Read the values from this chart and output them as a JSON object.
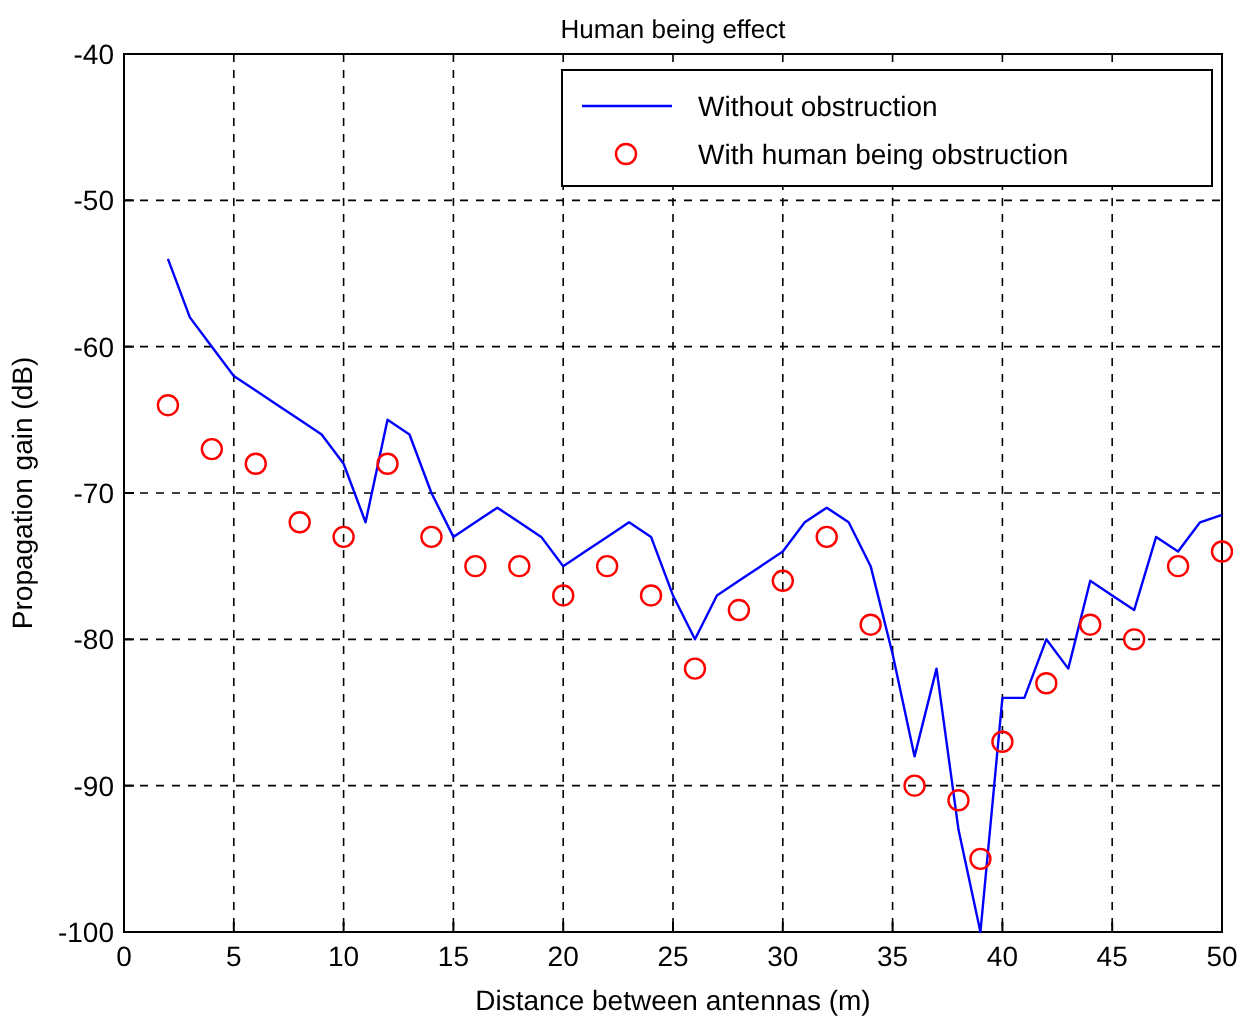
{
  "chart_data": {
    "type": "line",
    "title": "Human being effect",
    "xlabel": "Distance between antennas (m)",
    "ylabel": "Propagation gain (dB)",
    "xlim": [
      0,
      50
    ],
    "xticks": [
      0,
      5,
      10,
      15,
      20,
      25,
      30,
      35,
      40,
      45,
      50
    ],
    "ylim": [
      -100,
      -40
    ],
    "yticks": [
      -100,
      -90,
      -80,
      -70,
      -60,
      -50,
      -40
    ],
    "grid": true,
    "legend": "top right",
    "series": [
      {
        "name": "Without obstruction",
        "color": "#0000ff",
        "marker": "none",
        "line_style": "solid",
        "x": [
          2,
          3,
          4,
          5,
          6,
          7,
          8,
          9,
          10,
          11,
          12,
          13,
          14,
          15,
          16,
          17,
          18,
          19,
          20,
          21,
          22,
          23,
          24,
          25,
          26,
          27,
          28,
          29,
          30,
          31,
          32,
          33,
          34,
          35,
          36,
          37,
          38,
          39,
          40,
          41,
          42,
          43,
          44,
          45,
          46,
          47,
          48,
          49,
          50
        ],
        "values": [
          -54,
          -58,
          -60,
          -62,
          -63,
          -64,
          -65,
          -66,
          -68,
          -72,
          -65,
          -66,
          -70,
          -73,
          -72,
          -71,
          -72,
          -73,
          -75,
          -74,
          -73,
          -72,
          -73,
          -77,
          -80,
          -77,
          -76,
          -75,
          -74,
          -72,
          -71,
          -72,
          -75,
          -81,
          -88,
          -82,
          -93,
          -100,
          -84,
          -84,
          -80,
          -82,
          -76,
          -77,
          -78,
          -73,
          -74,
          -72,
          -71.5
        ]
      },
      {
        "name": "With human being obstruction",
        "type": "scatter",
        "color": "#ff0000",
        "marker": "circle",
        "x": [
          2,
          4,
          6,
          8,
          10,
          12,
          14,
          16,
          18,
          20,
          22,
          24,
          26,
          28,
          30,
          32,
          34,
          36,
          38,
          39,
          40,
          42,
          44,
          46,
          48,
          50
        ],
        "values": [
          -64,
          -67,
          -68,
          -72,
          -73,
          -68,
          -73,
          -75,
          -75,
          -77,
          -75,
          -77,
          -82,
          -78,
          -76,
          -73,
          -79,
          -90,
          -91,
          -95,
          -87,
          -83,
          -79,
          -80,
          -75,
          -74
        ]
      }
    ]
  }
}
